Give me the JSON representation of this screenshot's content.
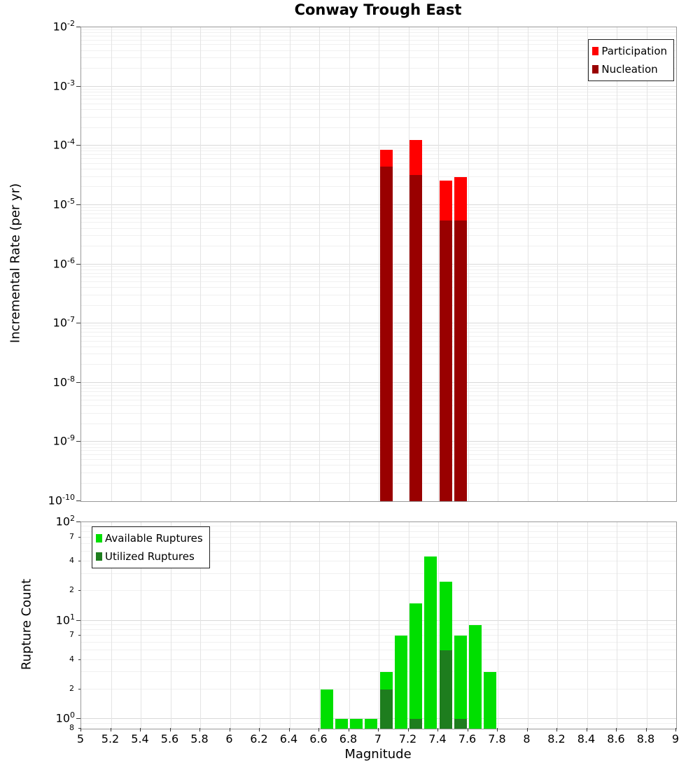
{
  "title": "Conway Trough East",
  "xlabel": "Magnitude",
  "chart_data": {
    "type": "bar",
    "xlim": [
      5,
      9
    ],
    "x_ticks": [
      "5",
      "5.2",
      "5.4",
      "5.6",
      "5.8",
      "6",
      "6.2",
      "6.4",
      "6.6",
      "6.8",
      "7",
      "7.2",
      "7.4",
      "7.6",
      "7.8",
      "8",
      "8.2",
      "8.4",
      "8.6",
      "8.8",
      "9"
    ],
    "panels": [
      {
        "id": "rate",
        "ylabel": "Incremental Rate (per yr)",
        "yscale": "log",
        "ylim": [
          1e-10,
          0.01
        ],
        "y_major_exponents": [
          -2,
          -3,
          -4,
          -5,
          -6,
          -7,
          -8,
          -9,
          -10
        ],
        "y_minor_tick_labels": [],
        "bar_width": 0.1,
        "grid": true,
        "legend_pos": "top-right",
        "series": [
          {
            "name": "Participation",
            "color": "#ff0000",
            "points": [
              {
                "x": 7.05,
                "y": 8.5e-05
              },
              {
                "x": 7.25,
                "y": 0.000125
              },
              {
                "x": 7.45,
                "y": 2.6e-05
              },
              {
                "x": 7.55,
                "y": 3e-05
              }
            ]
          },
          {
            "name": "Nucleation",
            "color": "#990000",
            "points": [
              {
                "x": 7.05,
                "y": 4.5e-05
              },
              {
                "x": 7.25,
                "y": 3.2e-05
              },
              {
                "x": 7.45,
                "y": 5.5e-06
              },
              {
                "x": 7.55,
                "y": 5.5e-06
              }
            ]
          }
        ]
      },
      {
        "id": "count",
        "ylabel": "Rupture Count",
        "yscale": "log",
        "ylim": [
          0.8,
          100
        ],
        "y_major_exponents": [
          2,
          1,
          0
        ],
        "y_minor_tick_labels": [
          {
            "value": 70,
            "label": "7"
          },
          {
            "value": 40,
            "label": "4"
          },
          {
            "value": 20,
            "label": "2"
          },
          {
            "value": 7,
            "label": "7"
          },
          {
            "value": 4,
            "label": "4"
          },
          {
            "value": 2,
            "label": "2"
          },
          {
            "value": 0.8,
            "label": "8"
          }
        ],
        "bar_width": 0.1,
        "grid": true,
        "legend_pos": "top-left",
        "series": [
          {
            "name": "Available Ruptures",
            "color": "#00df00",
            "points": [
              {
                "x": 6.65,
                "y": 2
              },
              {
                "x": 6.75,
                "y": 1
              },
              {
                "x": 6.85,
                "y": 1
              },
              {
                "x": 6.95,
                "y": 1
              },
              {
                "x": 7.05,
                "y": 3
              },
              {
                "x": 7.15,
                "y": 7
              },
              {
                "x": 7.25,
                "y": 15
              },
              {
                "x": 7.35,
                "y": 45
              },
              {
                "x": 7.45,
                "y": 25
              },
              {
                "x": 7.55,
                "y": 7
              },
              {
                "x": 7.65,
                "y": 9
              },
              {
                "x": 7.75,
                "y": 3
              }
            ]
          },
          {
            "name": "Utilized Ruptures",
            "color": "#1e7d1e",
            "points": [
              {
                "x": 7.05,
                "y": 2
              },
              {
                "x": 7.25,
                "y": 1
              },
              {
                "x": 7.45,
                "y": 5
              },
              {
                "x": 7.55,
                "y": 1
              }
            ]
          }
        ]
      }
    ]
  }
}
